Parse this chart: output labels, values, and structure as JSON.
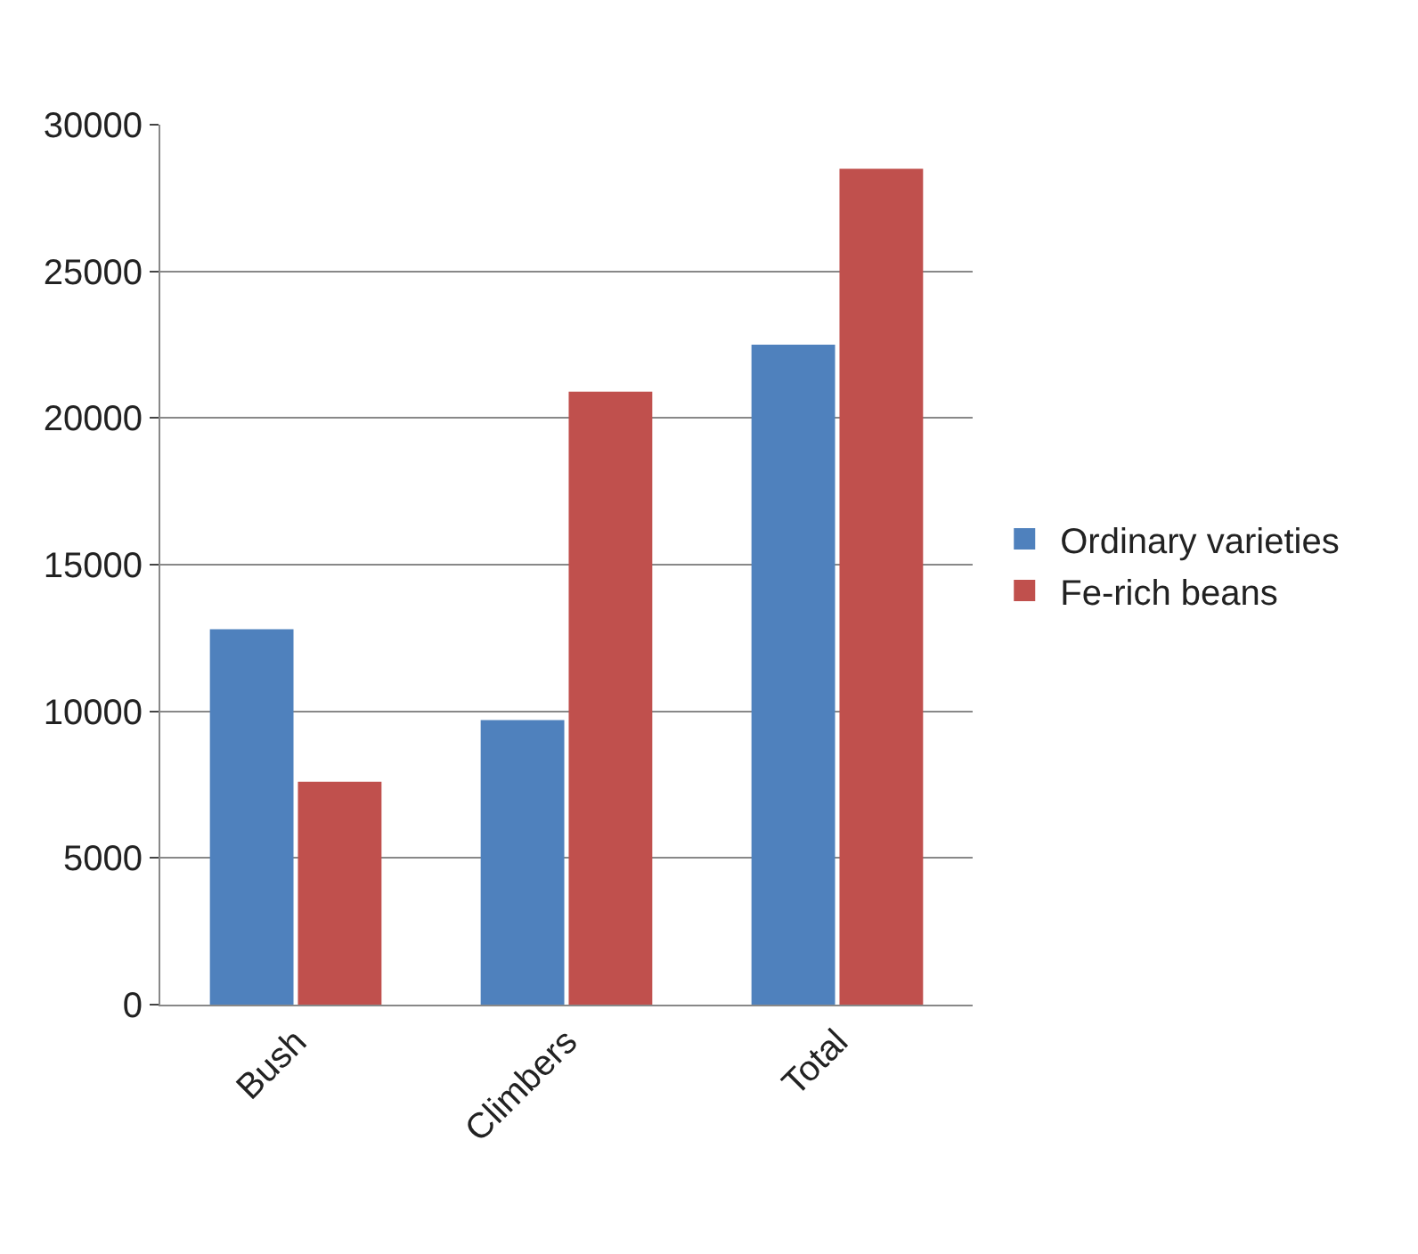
{
  "chart_data": {
    "type": "bar",
    "categories": [
      "Bush",
      "Climbers",
      "Total"
    ],
    "series": [
      {
        "name": "Ordinary varieties",
        "color": "#4f81bd",
        "values": [
          12800,
          9700,
          22500
        ]
      },
      {
        "name": "Fe-rich beans",
        "color": "#c0504d",
        "values": [
          7600,
          20900,
          28500
        ]
      }
    ],
    "ylim": [
      0,
      30000
    ],
    "yticks": [
      0,
      5000,
      10000,
      15000,
      20000,
      25000,
      30000
    ],
    "grid": "y",
    "legend": "right"
  }
}
